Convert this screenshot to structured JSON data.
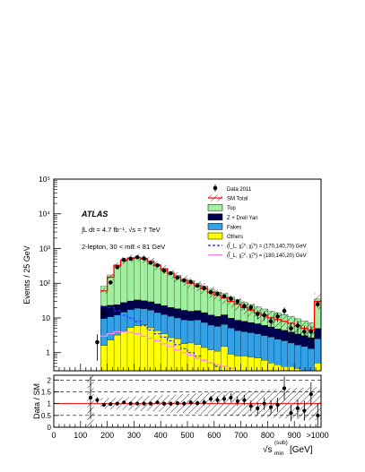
{
  "chart_data": [
    {
      "type": "histogram-stacked",
      "panel": "main",
      "title": "",
      "experiment_label": "ATLAS",
      "luminosity_text": "∫L dt = 4.7 fb⁻¹, √s = 7 TeV",
      "selection_text": "2-lepton, 30 < mℓℓ < 81 GeV",
      "ylabel": "Events / 25 GeV",
      "xlabel": "√s_min^(sub) [GeV]",
      "xlabel_parts": {
        "root": "√s",
        "sub": "min",
        "sup": "(sub)",
        "unit": "[GeV]"
      },
      "xlim": [
        0,
        1000
      ],
      "ylim": [
        0.3,
        100000
      ],
      "yscale": "log",
      "x_tick_labels": [
        "0",
        "100",
        "200",
        "300",
        "400",
        "500",
        "600",
        "700",
        "800",
        "900",
        ">1000"
      ],
      "y_tick_labels": [
        "1",
        "10",
        "10²",
        "10³",
        "10⁴",
        "10⁵"
      ],
      "y_tick_values": [
        1,
        10,
        100,
        1000,
        10000,
        100000
      ],
      "bin_edges": [
        0,
        25,
        50,
        75,
        100,
        125,
        150,
        175,
        200,
        225,
        250,
        275,
        300,
        325,
        350,
        375,
        400,
        425,
        450,
        475,
        500,
        525,
        550,
        575,
        600,
        625,
        650,
        675,
        700,
        725,
        750,
        775,
        800,
        825,
        850,
        875,
        900,
        925,
        950,
        975,
        1000
      ],
      "series": [
        {
          "name": "Others",
          "color": "#ffff00",
          "values": [
            0,
            0,
            0,
            0,
            0,
            0,
            0,
            1.6,
            2.3,
            3.2,
            4.2,
            5.3,
            6,
            6.3,
            5.2,
            4.3,
            3.5,
            2.7,
            2.5,
            1.8,
            1.9,
            1.7,
            1.4,
            1.2,
            1.1,
            1.5,
            0.9,
            0.8,
            0.8,
            0.75,
            0.7,
            0.6,
            0.5,
            0.45,
            0.4,
            0.4,
            0.35,
            0.3,
            0.3,
            0.5
          ]
        },
        {
          "name": "Fakes",
          "color": "#33a0e6",
          "values": [
            0,
            0,
            0,
            0,
            0,
            0,
            0,
            8,
            8.5,
            9,
            10.5,
            12,
            13,
            12,
            11.5,
            10,
            9,
            8.5,
            7.5,
            7,
            6.5,
            7,
            6,
            5,
            4.6,
            5,
            4.2,
            3.5,
            3.2,
            3,
            2.8,
            2.5,
            2.3,
            2,
            1.8,
            1.5,
            1.3,
            1.2,
            1,
            2
          ]
        },
        {
          "name": "Z + Drell Yan",
          "color": "#000050",
          "values": [
            0,
            0,
            0,
            0,
            0,
            0,
            0,
            12,
            12.5,
            12,
            13,
            13.5,
            14,
            13,
            12.5,
            11,
            10,
            9,
            8.5,
            7.8,
            7.2,
            7.5,
            6.8,
            6,
            5.4,
            5.8,
            4.8,
            4.3,
            4,
            3.6,
            3.3,
            3,
            2.7,
            2.4,
            2.2,
            2,
            1.8,
            1.6,
            1.4,
            2.5
          ]
        },
        {
          "name": "Top",
          "color": "#a0f0a0",
          "values": [
            0,
            0,
            0,
            0,
            0,
            0,
            0,
            60,
            150,
            320,
            450,
            520,
            540,
            500,
            420,
            320,
            250,
            190,
            150,
            120,
            100,
            85,
            70,
            55,
            45,
            38,
            30,
            25,
            20,
            17,
            14,
            12,
            10,
            9,
            8,
            7,
            6,
            5,
            4.5,
            30
          ]
        }
      ],
      "sm_total": [
        0,
        0,
        0,
        0,
        0,
        0,
        0,
        60,
        150,
        320,
        450,
        520,
        540,
        500,
        420,
        320,
        250,
        190,
        150,
        120,
        100,
        85,
        70,
        55,
        45,
        38,
        30,
        25,
        20,
        17,
        14,
        12,
        10,
        9,
        8,
        7,
        6,
        5,
        4.5,
        30
      ],
      "data_2011": [
        0,
        0,
        0,
        0,
        0,
        0,
        2,
        14,
        105,
        290,
        470,
        510,
        560,
        520,
        390,
        330,
        230,
        195,
        145,
        120,
        110,
        85,
        72,
        55,
        50,
        42,
        36,
        30,
        22,
        20,
        13,
        12,
        8,
        11,
        16,
        5,
        6,
        4,
        4,
        25
      ],
      "signal_series": [
        {
          "name": "(l̃_L, χ̃₂⁰, χ̃₁⁰) = (170,140,70) GeV",
          "color": "#2233ff",
          "style": "dashed",
          "values": [
            0,
            0,
            0,
            0,
            0,
            0,
            0,
            22,
            20,
            16,
            12,
            10,
            8,
            6,
            4.5,
            3.5,
            2.8,
            2.2,
            1.7,
            1.3,
            1,
            0.8,
            0.6,
            0.5,
            0.4,
            0.3,
            0.25,
            0.2,
            0.15,
            0.12,
            0.1,
            0.1,
            0.1,
            0.1,
            0.1,
            0.1,
            0.1,
            0.1,
            0.1,
            0.1
          ]
        },
        {
          "name": "(l̃_L, χ̃₂⁰, χ̃₁⁰) = (180,140,20) GeV",
          "color": "#ff88ee",
          "style": "solid",
          "values": [
            0,
            0,
            0,
            0,
            0,
            0,
            0,
            3,
            3.5,
            4,
            4,
            3.8,
            3.5,
            3,
            2.6,
            2.2,
            1.8,
            1.5,
            1.2,
            1,
            0.85,
            0.7,
            0.6,
            0.5,
            0.45,
            0.4,
            0.35,
            0.3,
            0.25,
            0.2,
            0.18,
            0.16,
            0.14,
            0.12,
            0.1,
            0.1,
            0.1,
            0.1,
            0.1,
            0.1
          ]
        }
      ],
      "legend": [
        {
          "label": "Data 2011",
          "kind": "marker"
        },
        {
          "label": "SM Total",
          "kind": "band"
        },
        {
          "label": "Top",
          "kind": "fill",
          "color": "#a0f0a0"
        },
        {
          "label": "Z + Drell Yan",
          "kind": "fill",
          "color": "#000050"
        },
        {
          "label": "Fakes",
          "kind": "fill",
          "color": "#33a0e6"
        },
        {
          "label": "Others",
          "kind": "fill",
          "color": "#ffff00"
        },
        {
          "label": "(l̃_L, χ̃₂⁰, χ̃₁⁰) = (170,140,70) GeV",
          "kind": "line",
          "color": "#2233ff",
          "style": "dashed"
        },
        {
          "label": "(l̃_L, χ̃₂⁰, χ̃₁⁰) = (180,140,20) GeV",
          "kind": "line",
          "color": "#ff88ee",
          "style": "solid"
        }
      ],
      "legend_placement": "top-right"
    },
    {
      "type": "ratio",
      "panel": "ratio",
      "ylabel": "Data / SM",
      "ylim": [
        0,
        2.2
      ],
      "y_tick_labels": [
        "0",
        "0.5",
        "1",
        "1.5",
        "2"
      ],
      "y_tick_values": [
        0,
        0.5,
        1,
        1.5,
        2
      ],
      "reference_line": 1,
      "reference_color": "#ff0000",
      "dashed_gridlines": [
        0.5,
        1.5,
        2
      ],
      "bin_centers": [
        137.5,
        162.5,
        187.5,
        212.5,
        237.5,
        262.5,
        287.5,
        312.5,
        337.5,
        362.5,
        387.5,
        412.5,
        437.5,
        462.5,
        487.5,
        512.5,
        537.5,
        562.5,
        587.5,
        612.5,
        637.5,
        662.5,
        687.5,
        712.5,
        737.5,
        762.5,
        787.5,
        812.5,
        837.5,
        862.5,
        887.5,
        912.5,
        937.5,
        962.5,
        987.5
      ],
      "values": [
        1.25,
        1.15,
        0.95,
        0.98,
        1.0,
        1.05,
        1.0,
        1.0,
        1.0,
        1.0,
        1.05,
        1.0,
        1.0,
        1.02,
        1.0,
        1.05,
        1.02,
        1.05,
        1.2,
        1.15,
        1.2,
        1.25,
        1.1,
        1.15,
        0.9,
        0.8,
        1.0,
        0.85,
        0.95,
        1.65,
        0.6,
        0.8,
        0.7,
        1.4,
        0.5
      ],
      "errors": [
        0.9,
        0.12,
        0.08,
        0.06,
        0.05,
        0.05,
        0.05,
        0.05,
        0.06,
        0.06,
        0.07,
        0.08,
        0.08,
        0.09,
        0.1,
        0.1,
        0.11,
        0.12,
        0.14,
        0.15,
        0.17,
        0.18,
        0.2,
        0.22,
        0.23,
        0.25,
        0.27,
        0.3,
        0.3,
        0.5,
        0.35,
        0.38,
        0.42,
        0.5,
        0.5
      ]
    }
  ]
}
